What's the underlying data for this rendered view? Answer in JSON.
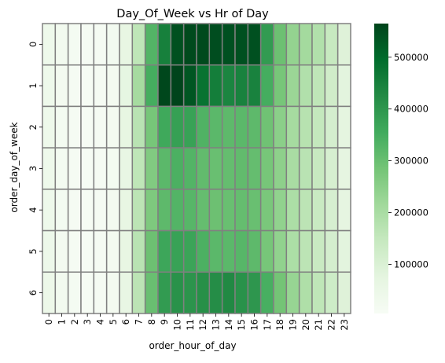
{
  "chart_data": {
    "type": "heatmap",
    "title": "Day_Of_Week vs Hr of Day",
    "xlabel": "order_hour_of_day",
    "ylabel": "order_day_of_week",
    "x_categories": [
      "0",
      "1",
      "2",
      "3",
      "4",
      "5",
      "6",
      "7",
      "8",
      "9",
      "10",
      "11",
      "12",
      "13",
      "14",
      "15",
      "16",
      "17",
      "18",
      "19",
      "20",
      "21",
      "22",
      "23"
    ],
    "y_categories": [
      "0",
      "1",
      "2",
      "3",
      "4",
      "5",
      "6"
    ],
    "colormap": "Greens",
    "cell_border_color": "#808080",
    "colorbar": {
      "min": 5000,
      "max": 565000,
      "ticks": [
        100000,
        200000,
        300000,
        400000,
        500000
      ],
      "tick_labels": [
        "100000",
        "200000",
        "300000",
        "400000",
        "500000"
      ]
    },
    "values": [
      [
        40000,
        25000,
        16000,
        12000,
        13000,
        23000,
        65000,
        160000,
        330000,
        450000,
        545000,
        555000,
        555000,
        550000,
        545000,
        545000,
        545000,
        390000,
        295000,
        235000,
        210000,
        185000,
        145000,
        90000
      ],
      [
        40000,
        22000,
        13000,
        10000,
        11000,
        22000,
        70000,
        205000,
        350000,
        560000,
        565000,
        535000,
        480000,
        455000,
        440000,
        445000,
        445000,
        350000,
        280000,
        225000,
        185000,
        160000,
        125000,
        80000
      ],
      [
        40000,
        20000,
        12000,
        9000,
        11000,
        22000,
        68000,
        170000,
        280000,
        360000,
        380000,
        375000,
        335000,
        320000,
        315000,
        320000,
        315000,
        290000,
        250000,
        205000,
        175000,
        150000,
        115000,
        75000
      ],
      [
        40000,
        20000,
        12000,
        9000,
        11000,
        20000,
        62000,
        160000,
        265000,
        320000,
        340000,
        330000,
        310000,
        300000,
        305000,
        310000,
        305000,
        280000,
        245000,
        200000,
        170000,
        145000,
        110000,
        72000
      ],
      [
        40000,
        20000,
        12000,
        9000,
        11000,
        21000,
        65000,
        165000,
        270000,
        315000,
        330000,
        325000,
        305000,
        295000,
        300000,
        305000,
        300000,
        275000,
        240000,
        195000,
        165000,
        140000,
        110000,
        72000
      ],
      [
        42000,
        22000,
        13000,
        9000,
        11000,
        21000,
        65000,
        170000,
        295000,
        365000,
        375000,
        370000,
        340000,
        320000,
        320000,
        325000,
        315000,
        280000,
        240000,
        195000,
        165000,
        140000,
        115000,
        80000
      ],
      [
        45000,
        26000,
        15000,
        10000,
        11000,
        21000,
        62000,
        165000,
        300000,
        390000,
        410000,
        405000,
        415000,
        420000,
        430000,
        410000,
        400000,
        345000,
        285000,
        230000,
        190000,
        160000,
        130000,
        90000
      ]
    ]
  }
}
